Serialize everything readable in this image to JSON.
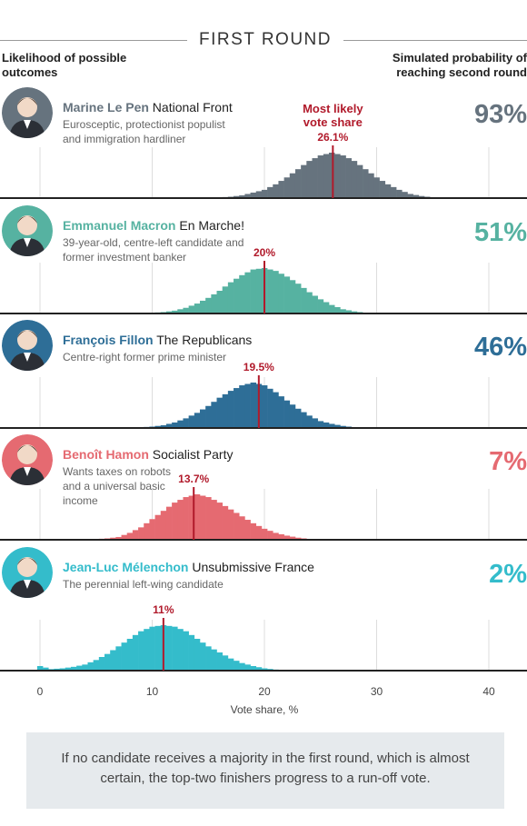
{
  "header": {
    "title": "FIRST ROUND",
    "left_label": "Likelihood of possible outcomes",
    "right_label_line1": "Simulated probability of",
    "right_label_line2": "reaching second round"
  },
  "note": "If no candidate receives a majority in the first round, which is almost certain, the top-two finishers progress to a run-off vote.",
  "colors": {
    "marker": "#b11a2b",
    "axis": "#222222",
    "gridline": "#dddddd"
  },
  "candidates": [
    {
      "name": "Marine Le Pen",
      "party": "National Front",
      "desc": "Eurosceptic, protectionist populist and immigration hardliner",
      "prob": "93%",
      "color": "#66737e",
      "label": "26.1%",
      "extra_label": "Most likely vote share"
    },
    {
      "name": "Emmanuel Macron",
      "party": "En Marche!",
      "desc": "39-year-old, centre-left candidate and former investment banker",
      "prob": "51%",
      "color": "#56b2a1",
      "label": "20%",
      "extra_label": ""
    },
    {
      "name": "François Fillon",
      "party": "The Republicans",
      "desc": "Centre-right former prime minister",
      "prob": "46%",
      "color": "#2e6e97",
      "label": "19.5%",
      "extra_label": ""
    },
    {
      "name": "Benoît Hamon",
      "party": "Socialist Party",
      "desc": "Wants taxes on robots and a universal basic income",
      "prob": "7%",
      "color": "#e56a71",
      "label": "13.7%",
      "extra_label": ""
    },
    {
      "name": "Jean-Luc Mélenchon",
      "party": "Unsubmissive France",
      "desc": "The perennial left-wing candidate",
      "prob": "2%",
      "color": "#34bccb",
      "label": "11%",
      "extra_label": ""
    }
  ],
  "chart_data": {
    "type": "bar",
    "xlabel": "Vote share, %",
    "xlim": [
      0,
      43
    ],
    "x_ticks": [
      "0",
      "10",
      "20",
      "30",
      "40"
    ],
    "bin_width": 0.5,
    "series": [
      {
        "name": "Marine Le Pen",
        "mode": 26.1,
        "values": [
          {
            "x": 16,
            "y": 0.5
          },
          {
            "x": 17,
            "y": 1
          },
          {
            "x": 18,
            "y": 2
          },
          {
            "x": 19,
            "y": 4
          },
          {
            "x": 20,
            "y": 6
          },
          {
            "x": 21,
            "y": 10
          },
          {
            "x": 22,
            "y": 15
          },
          {
            "x": 23,
            "y": 21
          },
          {
            "x": 24,
            "y": 27
          },
          {
            "x": 25,
            "y": 31
          },
          {
            "x": 26,
            "y": 33
          },
          {
            "x": 27,
            "y": 31
          },
          {
            "x": 28,
            "y": 27
          },
          {
            "x": 29,
            "y": 21
          },
          {
            "x": 30,
            "y": 15
          },
          {
            "x": 31,
            "y": 10
          },
          {
            "x": 32,
            "y": 6
          },
          {
            "x": 33,
            "y": 3
          },
          {
            "x": 34,
            "y": 1.5
          },
          {
            "x": 35,
            "y": 0.5
          }
        ]
      },
      {
        "name": "Emmanuel Macron",
        "mode": 20,
        "values": [
          {
            "x": 10,
            "y": 0.5
          },
          {
            "x": 11,
            "y": 1
          },
          {
            "x": 12,
            "y": 2
          },
          {
            "x": 13,
            "y": 4
          },
          {
            "x": 14,
            "y": 7
          },
          {
            "x": 15,
            "y": 11
          },
          {
            "x": 16,
            "y": 16
          },
          {
            "x": 17,
            "y": 22
          },
          {
            "x": 18,
            "y": 27
          },
          {
            "x": 19,
            "y": 31
          },
          {
            "x": 20,
            "y": 32
          },
          {
            "x": 21,
            "y": 30
          },
          {
            "x": 22,
            "y": 26
          },
          {
            "x": 23,
            "y": 21
          },
          {
            "x": 24,
            "y": 15
          },
          {
            "x": 25,
            "y": 10
          },
          {
            "x": 26,
            "y": 6
          },
          {
            "x": 27,
            "y": 3
          },
          {
            "x": 28,
            "y": 1.5
          },
          {
            "x": 29,
            "y": 0.5
          }
        ]
      },
      {
        "name": "François Fillon",
        "mode": 19.5,
        "values": [
          {
            "x": 9,
            "y": 0.5
          },
          {
            "x": 10,
            "y": 1
          },
          {
            "x": 11,
            "y": 2
          },
          {
            "x": 12,
            "y": 4
          },
          {
            "x": 13,
            "y": 7
          },
          {
            "x": 14,
            "y": 11
          },
          {
            "x": 15,
            "y": 16
          },
          {
            "x": 16,
            "y": 22
          },
          {
            "x": 17,
            "y": 27
          },
          {
            "x": 18,
            "y": 31
          },
          {
            "x": 19,
            "y": 33
          },
          {
            "x": 20,
            "y": 31
          },
          {
            "x": 21,
            "y": 26
          },
          {
            "x": 22,
            "y": 20
          },
          {
            "x": 23,
            "y": 14
          },
          {
            "x": 24,
            "y": 9
          },
          {
            "x": 25,
            "y": 5
          },
          {
            "x": 26,
            "y": 3
          },
          {
            "x": 27,
            "y": 1.5
          },
          {
            "x": 28,
            "y": 0.5
          },
          {
            "x": 29,
            "y": 0.3
          },
          {
            "x": 30,
            "y": 0.2
          }
        ]
      },
      {
        "name": "Benoît Hamon",
        "mode": 13.7,
        "values": [
          {
            "x": 5,
            "y": 0.5
          },
          {
            "x": 6,
            "y": 1
          },
          {
            "x": 7,
            "y": 2
          },
          {
            "x": 8,
            "y": 5
          },
          {
            "x": 9,
            "y": 9
          },
          {
            "x": 10,
            "y": 15
          },
          {
            "x": 11,
            "y": 21
          },
          {
            "x": 12,
            "y": 27
          },
          {
            "x": 13,
            "y": 31
          },
          {
            "x": 14,
            "y": 33
          },
          {
            "x": 15,
            "y": 31
          },
          {
            "x": 16,
            "y": 27
          },
          {
            "x": 17,
            "y": 22
          },
          {
            "x": 18,
            "y": 17
          },
          {
            "x": 19,
            "y": 12
          },
          {
            "x": 20,
            "y": 8
          },
          {
            "x": 21,
            "y": 5
          },
          {
            "x": 22,
            "y": 3
          },
          {
            "x": 23,
            "y": 1.5
          },
          {
            "x": 24,
            "y": 0.5
          }
        ]
      },
      {
        "name": "Jean-Luc Mélenchon",
        "mode": 11,
        "values": [
          {
            "x": 0,
            "y": 3
          },
          {
            "x": 1,
            "y": 1
          },
          {
            "x": 2,
            "y": 1.5
          },
          {
            "x": 3,
            "y": 2.5
          },
          {
            "x": 4,
            "y": 4
          },
          {
            "x": 5,
            "y": 7
          },
          {
            "x": 6,
            "y": 11
          },
          {
            "x": 7,
            "y": 16
          },
          {
            "x": 8,
            "y": 21
          },
          {
            "x": 9,
            "y": 26
          },
          {
            "x": 10,
            "y": 29
          },
          {
            "x": 11,
            "y": 30
          },
          {
            "x": 12,
            "y": 29
          },
          {
            "x": 13,
            "y": 26
          },
          {
            "x": 14,
            "y": 21
          },
          {
            "x": 15,
            "y": 16
          },
          {
            "x": 16,
            "y": 12
          },
          {
            "x": 17,
            "y": 8
          },
          {
            "x": 18,
            "y": 5
          },
          {
            "x": 19,
            "y": 3
          },
          {
            "x": 20,
            "y": 1.5
          },
          {
            "x": 21,
            "y": 0.7
          },
          {
            "x": 22,
            "y": 0.3
          }
        ]
      }
    ]
  }
}
